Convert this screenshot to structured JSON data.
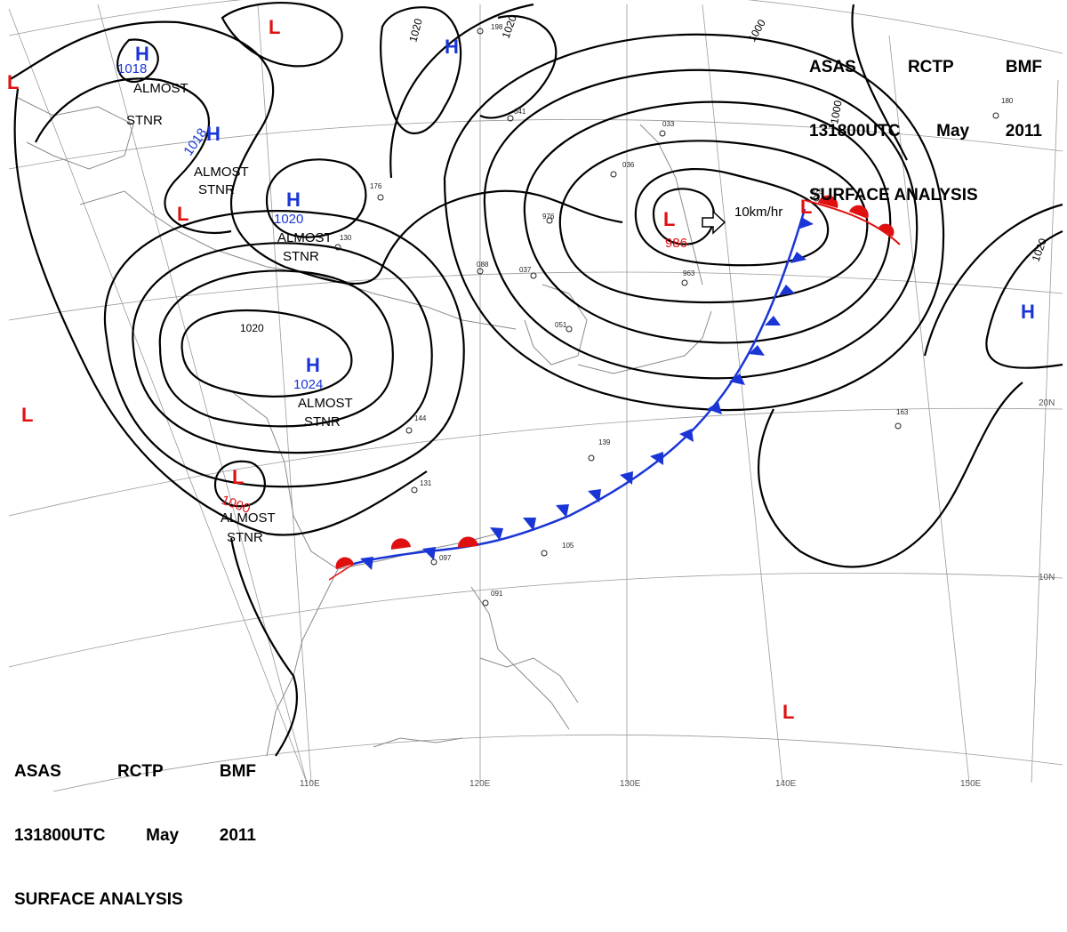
{
  "header": {
    "line1": [
      "ASAS",
      "RCTP",
      "BMF"
    ],
    "line2": [
      "131800UTC",
      "May",
      "2011"
    ],
    "line3": "SURFACE ANALYSIS"
  },
  "colors": {
    "high": "#1a35d6",
    "low": "#e01010",
    "isobar": "#000000",
    "coast": "#8a8a8a",
    "grid": "#9a9a9a"
  },
  "systems": [
    {
      "type": "H",
      "pressure": "1018",
      "note": "ALMOST STNR"
    },
    {
      "type": "H",
      "pressure": "1018",
      "note": "ALMOST STNR"
    },
    {
      "type": "H",
      "pressure": "1020",
      "note": "ALMOST STNR"
    },
    {
      "type": "H",
      "pressure": "1024",
      "note": "ALMOST STNR"
    },
    {
      "type": "L",
      "pressure": "1000",
      "note": "ALMOST STNR"
    },
    {
      "type": "L",
      "pressure": "986",
      "note": "10km/hr"
    },
    {
      "type": "H",
      "pressure": "",
      "note": ""
    },
    {
      "type": "H",
      "pressure": "",
      "note": ""
    },
    {
      "type": "L",
      "pressure": "",
      "note": ""
    },
    {
      "type": "L",
      "pressure": "",
      "note": ""
    },
    {
      "type": "L",
      "pressure": "",
      "note": ""
    },
    {
      "type": "L",
      "pressure": "",
      "note": ""
    },
    {
      "type": "L",
      "pressure": "",
      "note": ""
    },
    {
      "type": "L",
      "pressure": "",
      "note": ""
    }
  ],
  "isobar_labels": [
    "1020",
    "1020",
    "1000",
    "1000",
    "1020",
    "1020"
  ],
  "lon_labels": [
    "110E",
    "120E",
    "130E",
    "140E",
    "150E"
  ],
  "lat_labels": [
    "20N",
    "10N"
  ],
  "station_samples": [
    "976",
    "963",
    "825",
    "144",
    "131",
    "097",
    "091",
    "105",
    "163",
    "139",
    "176",
    "130",
    "036",
    "088",
    "037",
    "051",
    "198",
    "041",
    "033",
    "180"
  ]
}
